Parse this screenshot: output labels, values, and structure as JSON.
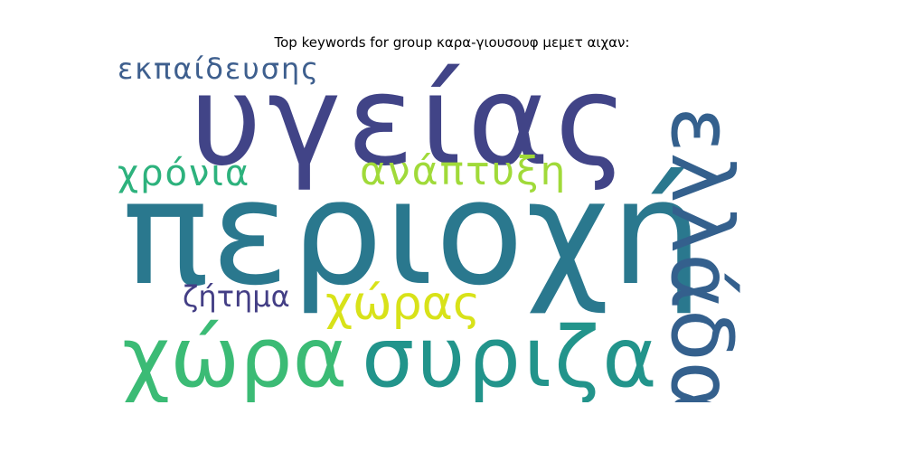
{
  "title": "Top keywords for group καρα-γιουσουφ μεμετ αιχαν:",
  "chart_data": {
    "type": "wordcloud",
    "words": [
      {
        "text": "υγείας",
        "color": "#414487"
      },
      {
        "text": "περιοχή",
        "color": "#2a788e"
      },
      {
        "text": "χώρα",
        "color": "#3bbb75"
      },
      {
        "text": "συριζα",
        "color": "#22948b"
      },
      {
        "text": "χώρας",
        "color": "#d8e219"
      },
      {
        "text": "εκπαίδευσης",
        "color": "#3e5f8e"
      },
      {
        "text": "χρόνια",
        "color": "#2db27d"
      },
      {
        "text": "ανάπτυξη",
        "color": "#a0da39"
      },
      {
        "text": "ζήτημα",
        "color": "#433e85"
      },
      {
        "text": "ελλάδα",
        "color": "#34608d"
      }
    ]
  }
}
